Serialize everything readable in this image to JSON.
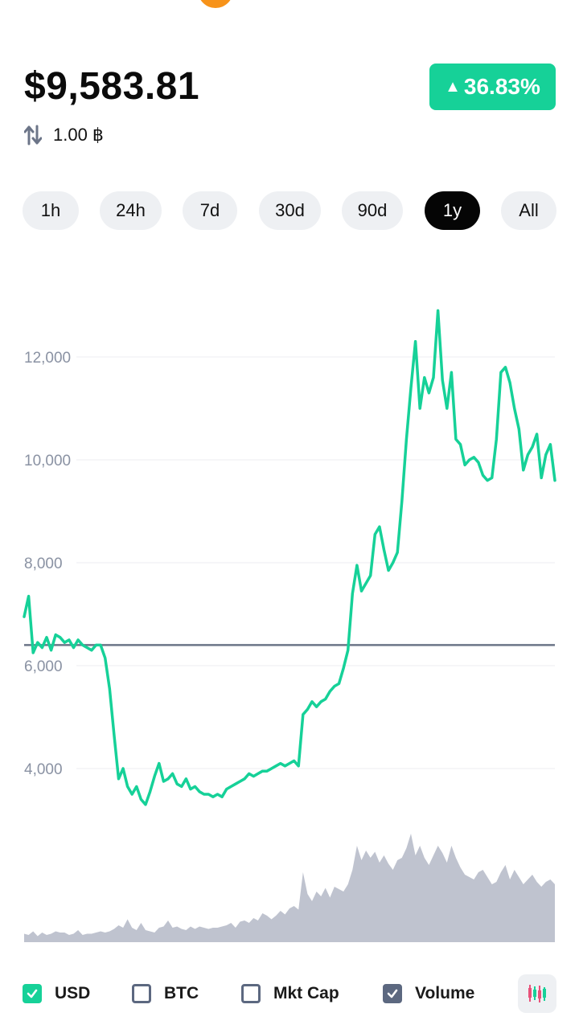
{
  "header": {
    "price": "$9,583.81",
    "change": "36.83%",
    "change_arrow": "▲",
    "conversion": "1.00 ฿",
    "icons": [
      "star-icon",
      "bitcoin-coin-icon",
      "swap-icon"
    ]
  },
  "tabs": [
    {
      "label": "1h",
      "active": false
    },
    {
      "label": "24h",
      "active": false
    },
    {
      "label": "7d",
      "active": false
    },
    {
      "label": "30d",
      "active": false
    },
    {
      "label": "90d",
      "active": false
    },
    {
      "label": "1y",
      "active": true
    },
    {
      "label": "All",
      "active": false
    }
  ],
  "legend": {
    "usd": {
      "label": "USD",
      "checked": true
    },
    "btc": {
      "label": "BTC",
      "checked": false
    },
    "mktcap": {
      "label": "Mkt Cap",
      "checked": false
    },
    "volume": {
      "label": "Volume",
      "checked": true
    }
  },
  "colors": {
    "accent": "#16d198",
    "active_tab": "#050505",
    "volume_fill": "#bfc3cf",
    "baseline": "#6c7588",
    "grid": "#eceef2"
  },
  "chart_data": {
    "type": "line",
    "xlabel": "",
    "ylabel": "",
    "yticks": [
      4000,
      6000,
      8000,
      10000,
      12000
    ],
    "ytick_labels": [
      "4,000",
      "6,000",
      "8,000",
      "10,000",
      "12,000"
    ],
    "ylim": [
      3000,
      13000
    ],
    "grid": true,
    "reference_line": 6400,
    "series": [
      {
        "values": [
          6950,
          7350,
          6250,
          6450,
          6350,
          6550,
          6300,
          6600,
          6550,
          6450,
          6500,
          6350,
          6500,
          6400,
          6350,
          6300,
          6400,
          6400,
          6150,
          5550,
          4650,
          3800,
          4000,
          3650,
          3500,
          3650,
          3400,
          3300,
          3550,
          3850,
          4100,
          3750,
          3800,
          3900,
          3700,
          3650,
          3800,
          3600,
          3650,
          3550,
          3500,
          3500,
          3450,
          3500,
          3450,
          3600,
          3650,
          3700,
          3750,
          3800,
          3900,
          3850,
          3900,
          3950,
          3950,
          4000,
          4050,
          4100,
          4050,
          4100,
          4150,
          4050,
          5050,
          5150,
          5300,
          5200,
          5300,
          5350,
          5500,
          5600,
          5650,
          5950,
          6300,
          7400,
          7950,
          7450,
          7600,
          7750,
          8550,
          8700,
          8250,
          7850,
          8000,
          8200,
          9200,
          10400,
          11400,
          12300,
          11000,
          11600,
          11300,
          11600,
          12900,
          11550,
          11000,
          11700,
          10400,
          10300,
          9900,
          10000,
          10050,
          9950,
          9700,
          9600,
          9650,
          10400,
          11700,
          11800,
          11500,
          11000,
          10600,
          9800,
          10100,
          10250,
          10500,
          9650,
          10100,
          10300,
          9600
        ],
        "color": "#16d198"
      }
    ],
    "volume": {
      "values": [
        7,
        6,
        9,
        5,
        8,
        6,
        7,
        9,
        8,
        8,
        6,
        7,
        10,
        6,
        7,
        7,
        8,
        9,
        8,
        9,
        11,
        14,
        12,
        19,
        12,
        10,
        16,
        10,
        9,
        8,
        12,
        13,
        18,
        12,
        13,
        11,
        10,
        13,
        11,
        13,
        12,
        11,
        12,
        12,
        13,
        14,
        16,
        12,
        17,
        18,
        16,
        20,
        18,
        24,
        22,
        19,
        22,
        26,
        23,
        28,
        30,
        27,
        58,
        40,
        34,
        42,
        38,
        45,
        37,
        46,
        44,
        42,
        48,
        60,
        80,
        68,
        76,
        70,
        75,
        66,
        72,
        65,
        60,
        68,
        70,
        78,
        90,
        72,
        80,
        70,
        64,
        72,
        80,
        74,
        66,
        80,
        70,
        62,
        56,
        54,
        52,
        58,
        60,
        54,
        48,
        50,
        58,
        64,
        52,
        60,
        54,
        48,
        52,
        56,
        50,
        46,
        50,
        52,
        48
      ],
      "color": "#bfc3cf"
    }
  }
}
